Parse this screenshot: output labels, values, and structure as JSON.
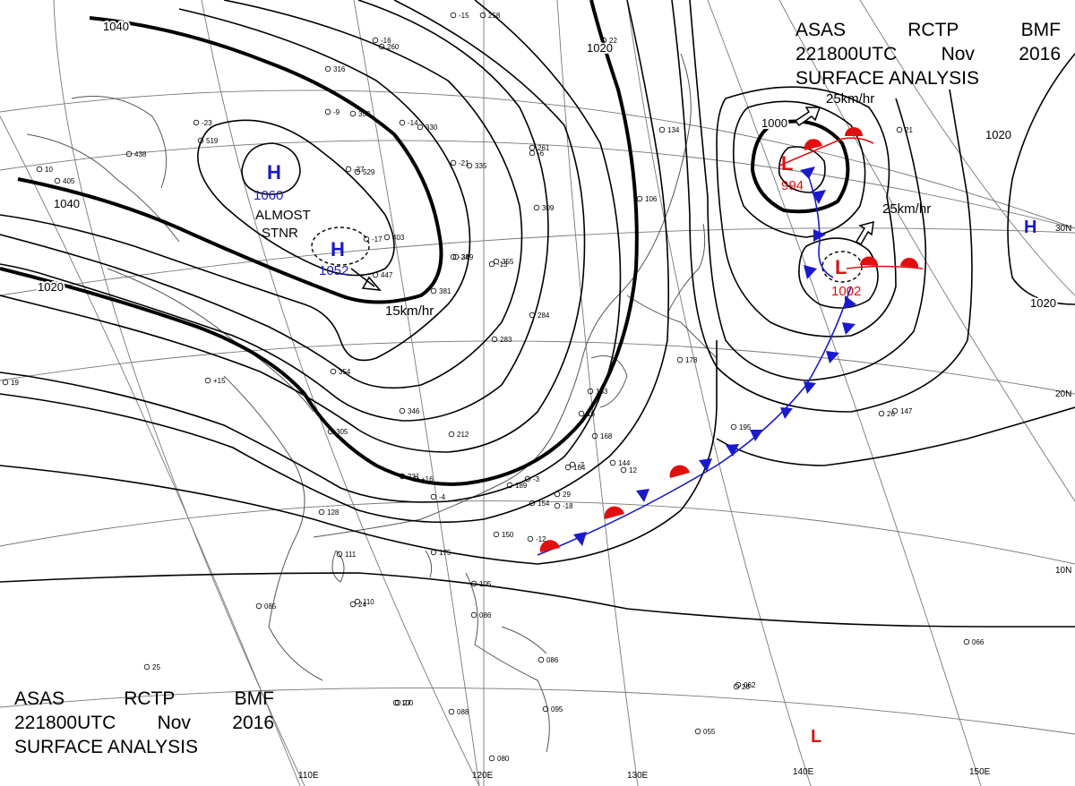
{
  "header": {
    "line1": [
      "ASAS",
      "RCTP",
      "BMF"
    ],
    "line2": [
      "221800UTC",
      "Nov",
      "2016"
    ],
    "line3": "SURFACE ANALYSIS"
  },
  "pressure_systems": [
    {
      "id": "high-siberia",
      "type": "H",
      "value": "1060",
      "color": "#1a1acc"
    },
    {
      "id": "high-mongolia",
      "type": "H",
      "value": "1052",
      "color": "#1a1acc"
    },
    {
      "id": "low-north",
      "type": "L",
      "value": "994",
      "color": "#e01010"
    },
    {
      "id": "low-south",
      "type": "L",
      "value": "1002",
      "color": "#e01010"
    },
    {
      "id": "high-east",
      "type": "H",
      "value": "",
      "color": "#1a1acc"
    },
    {
      "id": "low-tropics",
      "type": "L",
      "value": "",
      "color": "#e01010"
    }
  ],
  "annotations": {
    "almost_stnr_1": "ALMOST",
    "almost_stnr_2": "STNR",
    "speed_high": "15km/hr",
    "speed_low_north": "25km/hr",
    "speed_low_south": "25km/hr"
  },
  "isobar_labels": [
    "1040",
    "1040",
    "1020",
    "1020",
    "1000",
    "1020",
    "1020"
  ],
  "latitude_labels": [
    "30N",
    "20N",
    "10N"
  ],
  "longitude_labels": [
    "110E",
    "120E",
    "130E",
    "140E",
    "150E"
  ],
  "colors": {
    "high": "#1a1acc",
    "low": "#e01010",
    "front_cold": "#1a1acc",
    "front_warm": "#e01010"
  },
  "station_reports": [
    "258",
    "260",
    "316",
    "353",
    "330",
    "261",
    "335",
    "309",
    "355",
    "389",
    "403",
    "447",
    "381",
    "405",
    "438",
    "519",
    "529",
    "346",
    "305",
    "231",
    "212",
    "189",
    "168",
    "163",
    "144",
    "164",
    "154",
    "150",
    "175",
    "111",
    "110",
    "085",
    "086",
    "105",
    "100",
    "088",
    "086",
    "095",
    "080",
    "147",
    "066",
    "062",
    "055",
    "284",
    "283",
    "354",
    "128",
    "106",
    "134",
    "195",
    "178",
    "25",
    "-15",
    "-16",
    "-23",
    "-27",
    "-9",
    "-21",
    "-13",
    "-24",
    "-14",
    "-17",
    "-18",
    "-7",
    "-3",
    "26",
    "24",
    "27",
    "28",
    "29",
    "16",
    "19",
    "21",
    "22",
    "12",
    "10",
    "-6",
    "-4",
    "+15",
    "+16",
    "-12"
  ]
}
